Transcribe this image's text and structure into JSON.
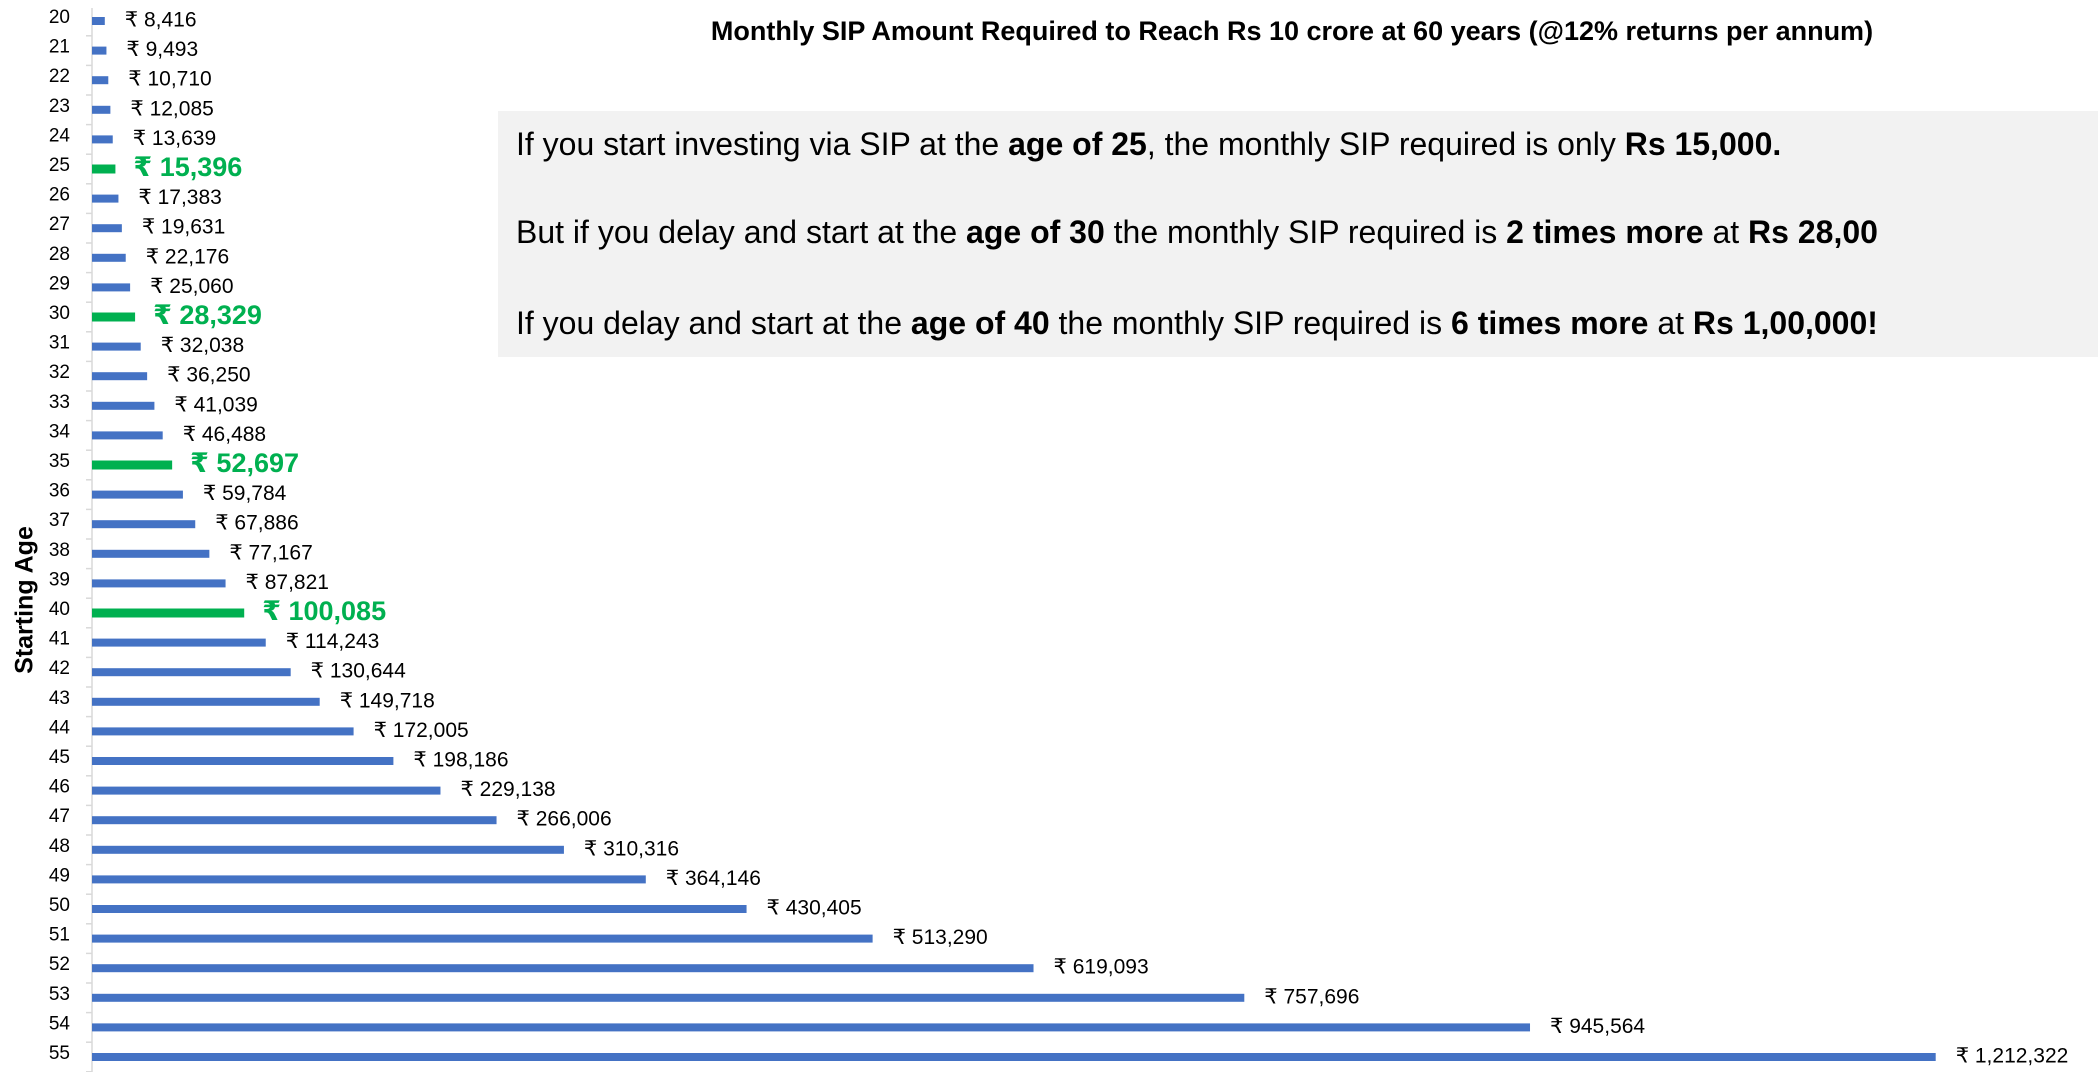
{
  "chart_data": {
    "type": "barh",
    "title": "Monthly SIP Amount Required to Reach Rs 10 crore at 60 years (@12% returns per annum)",
    "y_label": "Starting Age",
    "categories": [
      "20",
      "21",
      "22",
      "23",
      "24",
      "25",
      "26",
      "27",
      "28",
      "29",
      "30",
      "31",
      "32",
      "33",
      "34",
      "35",
      "36",
      "37",
      "38",
      "39",
      "40",
      "41",
      "42",
      "43",
      "44",
      "45",
      "46",
      "47",
      "48",
      "49",
      "50",
      "51",
      "52",
      "53",
      "54",
      "55"
    ],
    "values": [
      8416,
      9493,
      10710,
      12085,
      13639,
      15396,
      17383,
      19631,
      22176,
      25060,
      28329,
      32038,
      36250,
      41039,
      46488,
      52697,
      59784,
      67886,
      77167,
      87821,
      100085,
      114243,
      130644,
      149718,
      172005,
      198186,
      229138,
      266006,
      310316,
      364146,
      430405,
      513290,
      619093,
      757696,
      945564,
      1212322
    ],
    "value_labels": [
      "₹ 8,416",
      "₹ 9,493",
      "₹ 10,710",
      "₹ 12,085",
      "₹ 13,639",
      "₹ 15,396",
      "₹ 17,383",
      "₹ 19,631",
      "₹ 22,176",
      "₹ 25,060",
      "₹ 28,329",
      "₹ 32,038",
      "₹ 36,250",
      "₹ 41,039",
      "₹ 46,488",
      "₹ 52,697",
      "₹ 59,784",
      "₹ 67,886",
      "₹ 77,167",
      "₹ 87,821",
      "₹ 100,085",
      "₹ 114,243",
      "₹ 130,644",
      "₹ 149,718",
      "₹ 172,005",
      "₹ 198,186",
      "₹ 229,138",
      "₹ 266,006",
      "₹ 310,316",
      "₹ 364,146",
      "₹ 430,405",
      "₹ 513,290",
      "₹ 619,093",
      "₹ 757,696",
      "₹ 945,564",
      "₹ 1,212,322"
    ],
    "color": "#4472c4",
    "colors": [
      "#4472c4",
      "#4472c4",
      "#4472c4",
      "#4472c4",
      "#4472c4",
      "#00b050",
      "#4472c4",
      "#4472c4",
      "#4472c4",
      "#4472c4",
      "#00b050",
      "#4472c4",
      "#4472c4",
      "#4472c4",
      "#4472c4",
      "#00b050",
      "#4472c4",
      "#4472c4",
      "#4472c4",
      "#4472c4",
      "#00b050",
      "#4472c4",
      "#4472c4",
      "#4472c4",
      "#4472c4",
      "#4472c4",
      "#4472c4",
      "#4472c4",
      "#4472c4",
      "#4472c4",
      "#4472c4",
      "#4472c4",
      "#4472c4",
      "#4472c4",
      "#4472c4",
      "#4472c4"
    ],
    "xlim": [
      0,
      1250000
    ],
    "annotations": [
      [
        {
          "text": "If you start investing via SIP at the ",
          "bold": false
        },
        {
          "text": "age of 25",
          "bold": true
        },
        {
          "text": ", the monthly SIP required is only ",
          "bold": false
        },
        {
          "text": "Rs 15,000.",
          "bold": true
        }
      ],
      [
        {
          "text": "But if you delay and start at the ",
          "bold": false
        },
        {
          "text": "age of 30",
          "bold": true
        },
        {
          "text": " the monthly SIP required is ",
          "bold": false
        },
        {
          "text": "2 times more",
          "bold": true
        },
        {
          "text": " at ",
          "bold": false
        },
        {
          "text": "Rs 28,00",
          "bold": true
        }
      ],
      [
        {
          "text": "If you delay and start at the ",
          "bold": false
        },
        {
          "text": "age of 40",
          "bold": true
        },
        {
          "text": " the monthly SIP required is ",
          "bold": false
        },
        {
          "text": "6 times more",
          "bold": true
        },
        {
          "text": " at ",
          "bold": false
        },
        {
          "text": "Rs 1,00,000!",
          "bold": true
        }
      ]
    ]
  }
}
